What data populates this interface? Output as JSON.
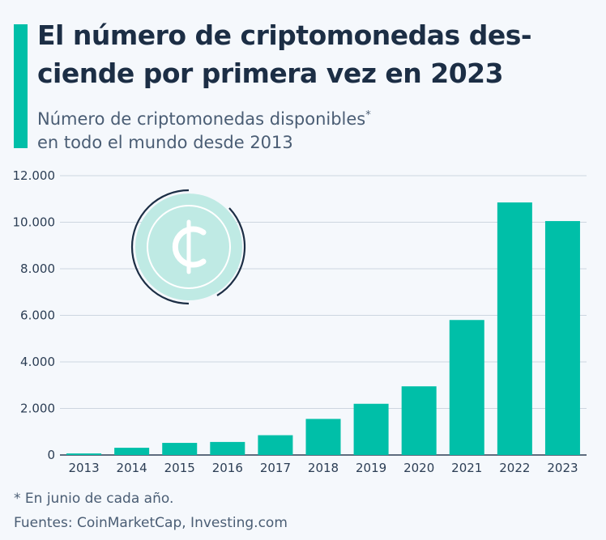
{
  "header": {
    "title": "El número de criptomonedas des-ciende por primera vez en 2023",
    "subtitle_line1": "Número de criptomonedas disponibles",
    "subtitle_mark": "*",
    "subtitle_line2": "en todo el mundo desde 2013"
  },
  "footer": {
    "footnote": "* En junio de cada año.",
    "source": "Fuentes: CoinMarketCap, Investing.com"
  },
  "colors": {
    "bar": "#00bfa8",
    "accent": "#00bfa8",
    "coin_fill": "#bfeae4",
    "coin_arc": "#1c2e45",
    "grid": "#cdd6e0"
  },
  "icon": {
    "name": "cent-coin-icon"
  },
  "chart_data": {
    "type": "bar",
    "title": "El número de criptomonedas des-ciende por primera vez en 2023",
    "xlabel": "",
    "ylabel": "",
    "categories": [
      "2013",
      "2014",
      "2015",
      "2016",
      "2017",
      "2018",
      "2019",
      "2020",
      "2021",
      "2022",
      "2023"
    ],
    "values": [
      66,
      310,
      520,
      560,
      850,
      1550,
      2200,
      2950,
      5800,
      10850,
      10050
    ],
    "ylim": [
      0,
      12000
    ],
    "yticks": [
      0,
      2000,
      4000,
      6000,
      8000,
      10000,
      12000
    ],
    "ytick_labels": [
      "0",
      "2.000",
      "4.000",
      "6.000",
      "8.000",
      "10.000",
      "12.000"
    ],
    "grid": true,
    "legend": "none"
  }
}
